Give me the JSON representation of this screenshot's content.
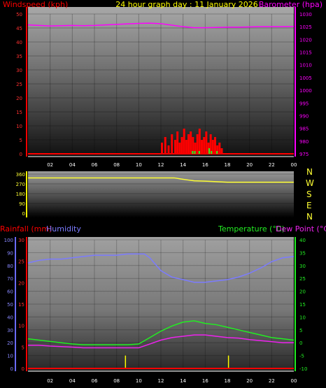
{
  "header": {
    "left_label": "Windspeed (kph)",
    "center_label": "24 hour graph day : 11 January 2026",
    "right_label": "Barometer (hpa)"
  },
  "compass_labels": [
    "N",
    "W",
    "S",
    "E",
    "N"
  ],
  "bottom_header": {
    "rainfall_label": "Rainfall (mm)",
    "humidity_label": "Humidity",
    "temperature_label": "Temperature (°C)",
    "dewpoint_label": "Dew Point (°C)"
  },
  "colors": {
    "wind": "#ff0000",
    "gust": "#22ff22",
    "barometer": "#ff00ff",
    "direction": "#ffff33",
    "rainfall": "#ff0000",
    "humidity": "#7b7bff",
    "temperature": "#22ee22",
    "dewpoint": "#ee22ee",
    "rain_bars": "#ffff00",
    "title": "#ffff00"
  },
  "chart_data": [
    {
      "type": "bar",
      "panel": "wind-barometer",
      "x_ticks": [
        "02",
        "04",
        "06",
        "08",
        "10",
        "12",
        "14",
        "16",
        "18",
        "20",
        "22",
        "00"
      ],
      "x_range": [
        0,
        24
      ],
      "y_left": {
        "label": "Windspeed (kph)",
        "range": [
          0,
          50
        ],
        "ticks": [
          0,
          5,
          10,
          15,
          20,
          25,
          30,
          35,
          40,
          45,
          50
        ]
      },
      "y_right": {
        "label": "Barometer (hpa)",
        "range": [
          975,
          1030
        ],
        "ticks": [
          975,
          980,
          985,
          990,
          995,
          1000,
          1005,
          1010,
          1015,
          1020,
          1025,
          1030
        ]
      },
      "series": [
        {
          "name": "Windspeed",
          "axis": "left",
          "x": [
            12.0,
            12.3,
            12.6,
            12.9,
            13.2,
            13.4,
            13.6,
            13.8,
            14.0,
            14.2,
            14.4,
            14.6,
            14.8,
            15.0,
            15.2,
            15.4,
            15.6,
            15.8,
            16.0,
            16.2,
            16.4,
            16.6,
            16.8,
            17.0,
            17.2,
            17.4
          ],
          "values": [
            4,
            6,
            3,
            7,
            5,
            8,
            4,
            6,
            9,
            5,
            7,
            8,
            6,
            4,
            7,
            9,
            5,
            6,
            8,
            4,
            7,
            5,
            6,
            3,
            4,
            2
          ]
        },
        {
          "name": "Gust",
          "axis": "left",
          "x": [
            14.8,
            15.0,
            15.4,
            16.3,
            16.5,
            17.0
          ],
          "values": [
            1,
            1,
            1,
            2,
            1,
            1
          ]
        },
        {
          "name": "Barometer",
          "axis": "right",
          "x": [
            0,
            1,
            2,
            3,
            4,
            5,
            6,
            7,
            8,
            9,
            10,
            11,
            12,
            13,
            14,
            15,
            16,
            17,
            18,
            19,
            20,
            21,
            22,
            23,
            24
          ],
          "values": [
            1025.7,
            1025.5,
            1025.3,
            1025.4,
            1025.5,
            1025.4,
            1025.5,
            1025.7,
            1025.9,
            1026.1,
            1026.3,
            1026.4,
            1026.2,
            1025.6,
            1025.0,
            1024.6,
            1024.6,
            1024.7,
            1024.8,
            1024.8,
            1024.9,
            1025.0,
            1025.0,
            1025.0,
            1025.1
          ]
        }
      ]
    },
    {
      "type": "line",
      "panel": "wind-direction",
      "x_range": [
        0,
        24
      ],
      "y": {
        "range": [
          0,
          360
        ],
        "ticks": [
          0,
          90,
          180,
          270,
          360
        ]
      },
      "series": [
        {
          "name": "Wind Direction",
          "x": [
            0,
            5,
            10,
            12,
            13.2,
            13.8,
            14.5,
            15,
            16,
            17,
            18,
            20,
            22,
            24
          ],
          "values": [
            325,
            325,
            325,
            325,
            325,
            315,
            305,
            298,
            295,
            290,
            285,
            285,
            285,
            285
          ]
        }
      ]
    },
    {
      "type": "line",
      "panel": "temperature-humidity-rain",
      "x_ticks": [
        "02",
        "04",
        "06",
        "08",
        "10",
        "12",
        "14",
        "16",
        "18",
        "20",
        "22",
        "00"
      ],
      "x_range": [
        0,
        24
      ],
      "y_humidity": {
        "label": "Humidity",
        "range": [
          0,
          100
        ],
        "ticks": [
          0,
          10,
          20,
          30,
          40,
          50,
          60,
          70,
          80,
          90,
          100
        ]
      },
      "y_rainfall": {
        "label": "Rainfall (mm)",
        "range": [
          0,
          30
        ],
        "ticks": [
          0,
          5,
          10,
          15,
          20,
          25,
          30
        ]
      },
      "y_temperature": {
        "label": "Temperature (°C)",
        "range": [
          -10,
          40
        ],
        "ticks": [
          -10,
          -5,
          0,
          5,
          10,
          15,
          20,
          25,
          30,
          35,
          40
        ]
      },
      "series": [
        {
          "name": "Humidity",
          "axis": "humidity",
          "x": [
            0,
            1,
            2,
            3,
            4,
            5,
            6,
            7,
            8,
            9,
            10,
            10.5,
            11,
            12,
            13,
            14,
            15,
            16,
            17,
            18,
            19,
            20,
            21,
            22,
            23,
            24
          ],
          "values": [
            82,
            84,
            85,
            85,
            86,
            87,
            88,
            88,
            88,
            89,
            89,
            89,
            86,
            76,
            71,
            69,
            67,
            67,
            68,
            69,
            71,
            74,
            78,
            83,
            86,
            87
          ]
        },
        {
          "name": "Temperature",
          "axis": "temperature",
          "x": [
            0,
            1,
            2,
            3,
            4,
            5,
            6,
            7,
            8,
            9,
            10,
            11,
            12,
            13,
            14,
            15,
            16,
            17,
            18,
            19,
            20,
            21,
            22,
            23,
            24
          ],
          "values": [
            1.5,
            1.0,
            0.5,
            0.0,
            -0.5,
            -0.8,
            -0.8,
            -0.8,
            -0.8,
            -0.8,
            -0.5,
            2.0,
            4.5,
            6.5,
            8.0,
            8.5,
            7.5,
            7.0,
            6.0,
            5.0,
            4.0,
            3.0,
            2.0,
            1.5,
            1.0
          ]
        },
        {
          "name": "Dew Point",
          "axis": "temperature",
          "x": [
            0,
            1,
            2,
            3,
            4,
            5,
            6,
            7,
            8,
            9,
            10,
            11,
            12,
            13,
            14,
            15,
            16,
            17,
            18,
            19,
            20,
            21,
            22,
            23,
            24
          ],
          "values": [
            -1.0,
            -1.0,
            -1.3,
            -1.5,
            -1.7,
            -2.0,
            -2.0,
            -2.0,
            -2.0,
            -2.0,
            -2.0,
            -0.5,
            1.0,
            2.0,
            2.5,
            3.0,
            3.0,
            2.5,
            2.0,
            1.8,
            1.2,
            0.8,
            0.4,
            0.0,
            0.0
          ]
        },
        {
          "name": "Rain Events",
          "axis": "rainfall",
          "x": [
            8.8,
            18.1
          ],
          "values": [
            3,
            3
          ]
        },
        {
          "name": "Rainfall",
          "axis": "rainfall",
          "x": [
            0,
            24
          ],
          "values": [
            0,
            0
          ]
        }
      ]
    }
  ]
}
